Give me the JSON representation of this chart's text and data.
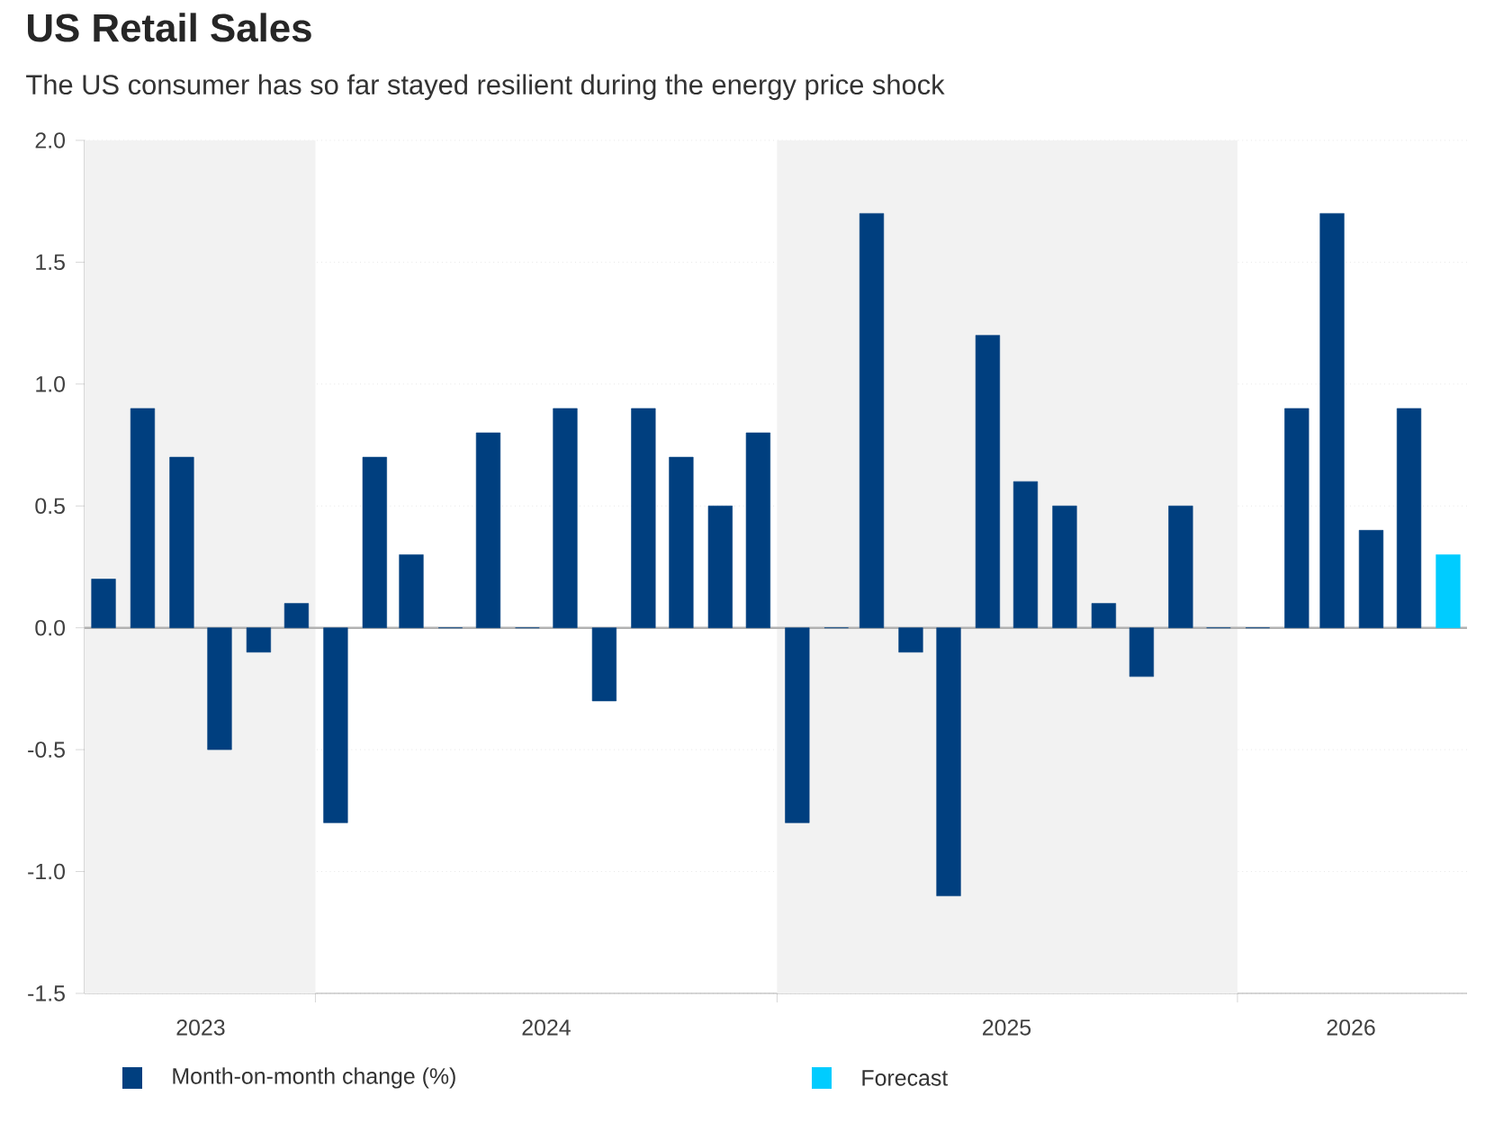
{
  "chart_data": {
    "type": "bar",
    "title": "US Retail Sales",
    "subtitle": "The US consumer has so far stayed resilient during the energy price shock",
    "x": [
      "2023-07",
      "2023-08",
      "2023-09",
      "2023-10",
      "2023-11",
      "2023-12",
      "2024-01",
      "2024-02",
      "2024-03",
      "2024-04",
      "2024-05",
      "2024-06",
      "2024-07",
      "2024-08",
      "2024-09",
      "2024-10",
      "2024-11",
      "2024-12",
      "2025-01",
      "2025-02",
      "2025-03",
      "2025-04",
      "2025-05",
      "2025-06",
      "2025-07",
      "2025-08",
      "2025-09",
      "2025-10",
      "2025-11",
      "2025-12",
      "2026-01",
      "2026-02",
      "2026-03",
      "2026-04",
      "2026-05",
      "2026-06"
    ],
    "series": [
      {
        "name": "Month-on-month change (%)",
        "color": "#003f7f",
        "values": [
          0.2,
          0.9,
          0.7,
          -0.5,
          -0.1,
          0.1,
          -0.8,
          0.7,
          0.3,
          0.0,
          0.8,
          0.0,
          0.9,
          -0.3,
          0.9,
          0.7,
          0.5,
          0.8,
          -0.8,
          0.0,
          1.7,
          -0.1,
          -1.1,
          1.2,
          0.6,
          0.5,
          0.1,
          -0.2,
          0.5,
          0.0,
          0.0,
          0.9,
          1.7,
          0.4,
          0.9,
          null
        ]
      },
      {
        "name": "Forecast",
        "color": "#00ccff",
        "values": [
          null,
          null,
          null,
          null,
          null,
          null,
          null,
          null,
          null,
          null,
          null,
          null,
          null,
          null,
          null,
          null,
          null,
          null,
          null,
          null,
          null,
          null,
          null,
          null,
          null,
          null,
          null,
          null,
          null,
          null,
          null,
          null,
          null,
          null,
          null,
          0.3
        ]
      }
    ],
    "xlim": [
      "2023-06-16",
      "2026-06-16"
    ],
    "xticks": [
      {
        "value": "2023-09-16",
        "label": "2023"
      },
      {
        "value": "2023-12-16",
        "label": null
      },
      {
        "value": "2024-06-16",
        "label": "2024"
      },
      {
        "value": "2024-12-16",
        "label": null
      },
      {
        "value": "2025-06-16",
        "label": "2025"
      },
      {
        "value": "2025-12-16",
        "label": null
      },
      {
        "value": "2026-03-16",
        "label": "2026"
      }
    ],
    "ylim": [
      -1.5,
      2.0
    ],
    "yticks": [
      {
        "value": -1.5,
        "label": "-1.5"
      },
      {
        "value": -1.0,
        "label": "-1.0"
      },
      {
        "value": -0.5,
        "label": "-0.5"
      },
      {
        "value": 0,
        "label": "0.0"
      },
      {
        "value": 0.5,
        "label": "0.5"
      },
      {
        "value": 1.0,
        "label": "1.0"
      },
      {
        "value": 1.5,
        "label": "1.5"
      },
      {
        "value": 2.0,
        "label": "2.0"
      }
    ],
    "bands": [
      {
        "axis": "x",
        "from": "2023-06-16",
        "to": "2023-12-16",
        "color": "#f2f2f2"
      },
      {
        "axis": "x",
        "from": "2024-12-16",
        "to": "2025-12-16",
        "color": "#f2f2f2"
      }
    ],
    "grid": "y",
    "legend": "bottom"
  }
}
